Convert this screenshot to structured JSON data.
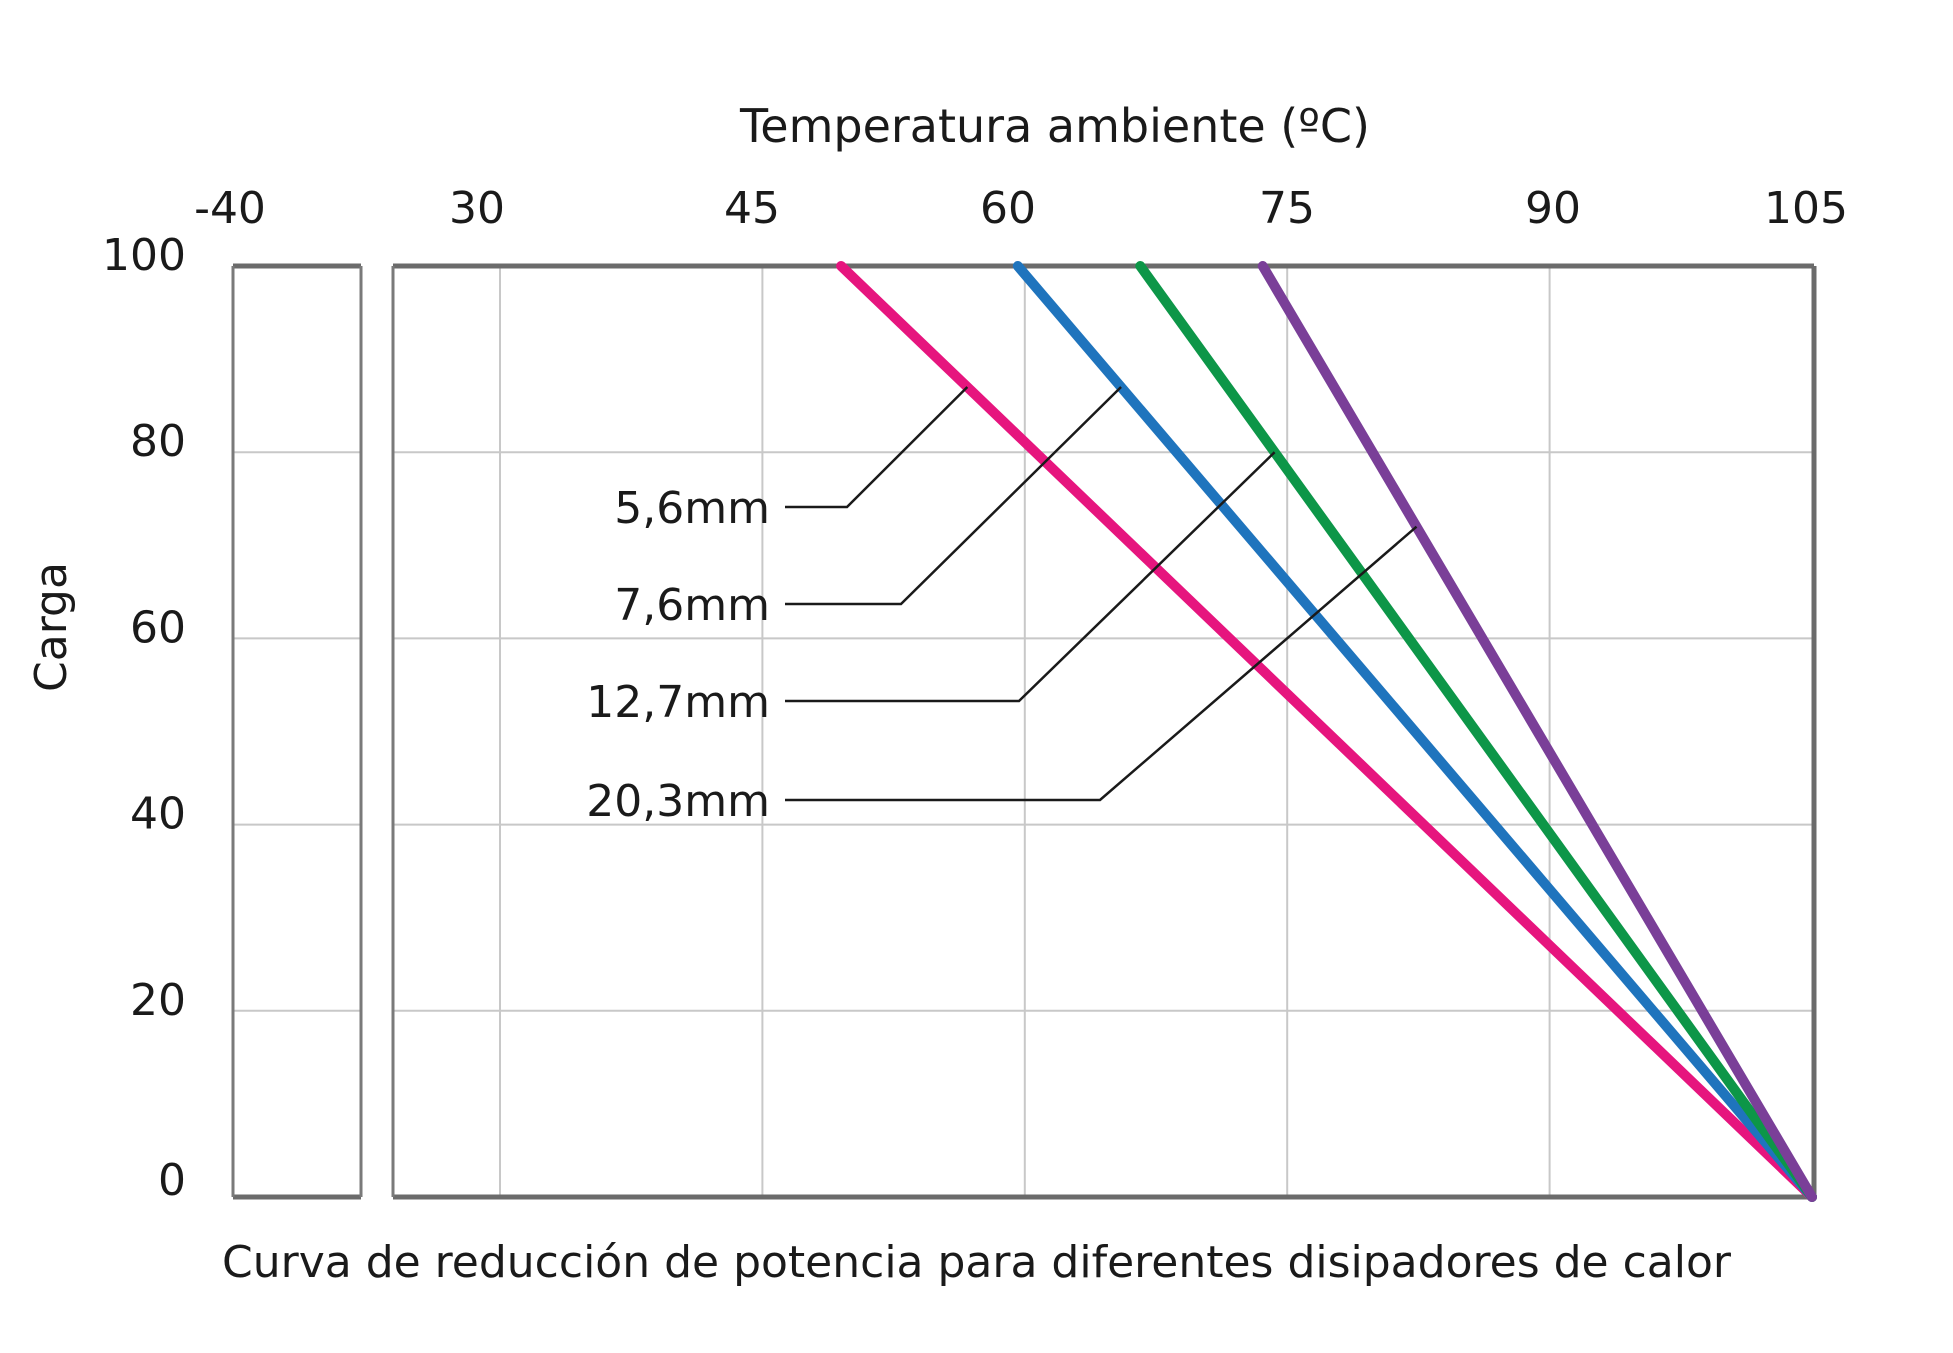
{
  "chart_data": {
    "type": "line",
    "title": "Temperatura ambiente (ºC)",
    "caption": "Curva de reducción de potencia para diferentes disipadores de calor",
    "xlabel": "Temperatura ambiente (ºC)",
    "ylabel": "Carga",
    "x_ticks": [
      "-40",
      "30",
      "45",
      "60",
      "75",
      "90",
      "105"
    ],
    "x_tick_values": [
      -40,
      30,
      45,
      60,
      75,
      90,
      105
    ],
    "y_ticks": [
      "100",
      "80",
      "60",
      "40",
      "20",
      "0"
    ],
    "y_tick_values": [
      100,
      80,
      60,
      40,
      20,
      0
    ],
    "xlim": [
      -40,
      105
    ],
    "ylim": [
      0,
      100
    ],
    "x_axis_break": true,
    "grid": true,
    "series": [
      {
        "name": "5,6mm",
        "color": "#e6157e",
        "points": [
          [
            49.5,
            100
          ],
          [
            105,
            0
          ]
        ]
      },
      {
        "name": "7,6mm",
        "color": "#1f74bd",
        "points": [
          [
            59.6,
            100
          ],
          [
            105,
            0
          ]
        ]
      },
      {
        "name": "12,7mm",
        "color": "#0d9648",
        "points": [
          [
            66.6,
            100
          ],
          [
            105,
            0
          ]
        ]
      },
      {
        "name": "20,3mm",
        "color": "#7a3f98",
        "points": [
          [
            73.6,
            100
          ],
          [
            105,
            0
          ]
        ]
      }
    ]
  }
}
